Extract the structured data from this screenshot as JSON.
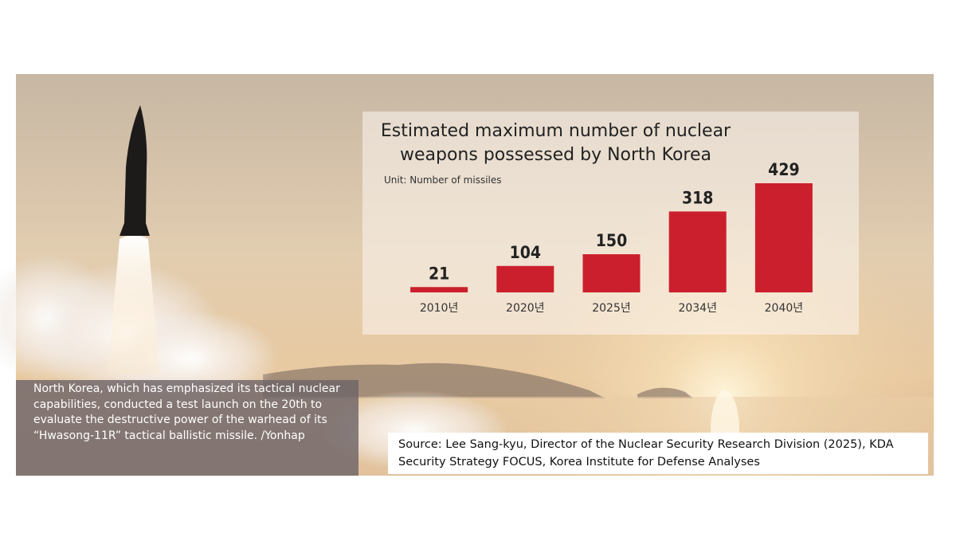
{
  "chart_data": {
    "type": "bar",
    "title": "Estimated maximum number of nuclear weapons possessed by North Korea",
    "subtitle": "Unit: Number of missiles",
    "categories": [
      "2010년",
      "2020년",
      "2025년",
      "2034년",
      "2040년"
    ],
    "values": [
      21,
      104,
      150,
      318,
      429
    ],
    "color": "#cc1f2d",
    "ylim": [
      0,
      429
    ]
  },
  "caption": "North Korea, which has emphasized its tactical nuclear capabilities, conducted a test launch on the 20th to evaluate the destructive power of the warhead of its “Hwasong-11R” tactical ballistic missile. /Yonhap",
  "source": "Source: Lee Sang-kyu, Director of the Nuclear Security Research Division (2025), KDA Security Strategy FOCUS, Korea Institute for Defense Analyses"
}
